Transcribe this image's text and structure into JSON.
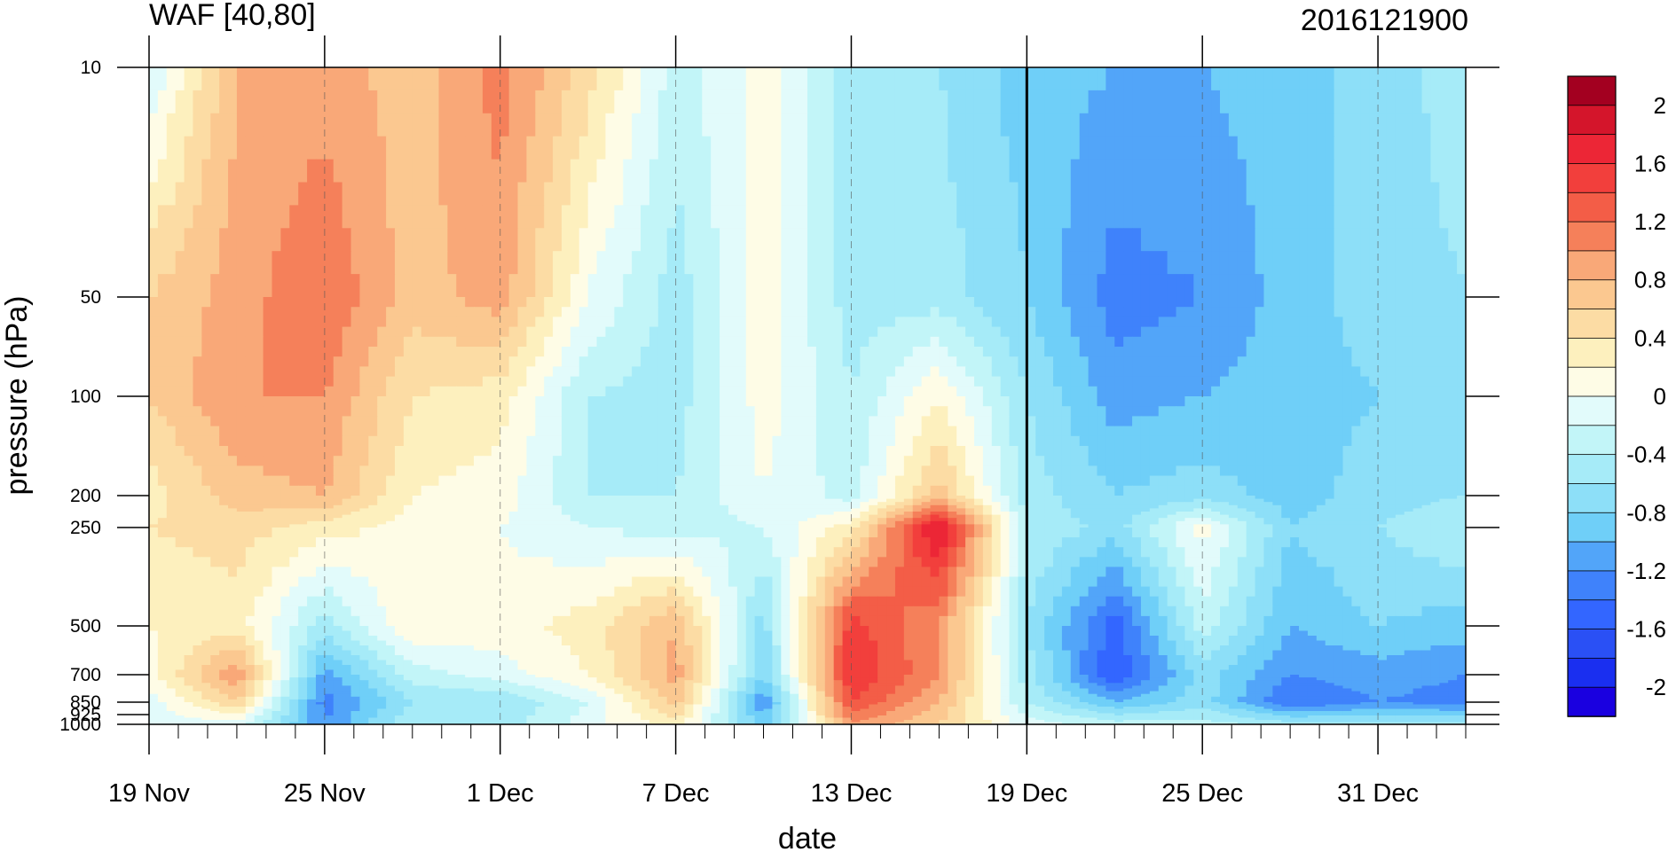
{
  "chart_data": {
    "type": "heatmap",
    "title_left": "WAF [40,80]",
    "title_right": "2016121900",
    "xlabel": "date",
    "ylabel": "pressure (hPa)",
    "x_ticks": [
      "19 Nov",
      "25 Nov",
      "1 Dec",
      "7 Dec",
      "13 Dec",
      "19 Dec",
      "25 Dec",
      "31 Dec"
    ],
    "x_range": [
      "2016-11-19",
      "2017-01-03"
    ],
    "y_ticks": [
      "10",
      "50",
      "100",
      "200",
      "250",
      "500",
      "700",
      "850",
      "925",
      "1000"
    ],
    "y_range": [
      1000,
      10
    ],
    "y_scale": "log, inverted",
    "marked_date": "19 Dec",
    "colorbar": {
      "levels": [
        -2.2,
        -2,
        -1.8,
        -1.6,
        -1.4,
        -1.2,
        -1,
        -0.8,
        -0.6,
        -0.4,
        -0.2,
        0,
        0.2,
        0.4,
        0.6,
        0.8,
        1,
        1.2,
        1.4,
        1.6,
        1.8,
        2,
        2.2
      ],
      "labels": [
        "2",
        "1.6",
        "1.2",
        "0.8",
        "0.4",
        "0",
        "-0.4",
        "-0.8",
        "-1.2",
        "-1.6",
        "-2"
      ],
      "colors": [
        "#1a00e0",
        "#1a2ff0",
        "#2a50f5",
        "#3366ff",
        "#3f82fb",
        "#52a5f9",
        "#6fcff8",
        "#8ddff8",
        "#a6ebf8",
        "#c2f5f8",
        "#e2fbfb",
        "#fefce6",
        "#fdf0be",
        "#fcdca4",
        "#fbc890",
        "#f9a878",
        "#f5805a",
        "#f35d47",
        "#f23f3c",
        "#ec2636",
        "#d4152b",
        "#a30020"
      ]
    },
    "field": {
      "dates": [
        "19 Nov",
        "22 Nov",
        "25 Nov",
        "28 Nov",
        "1 Dec",
        "4 Dec",
        "7 Dec",
        "10 Dec",
        "13 Dec",
        "16 Dec",
        "19 Dec",
        "22 Dec",
        "25 Dec",
        "28 Dec",
        "31 Dec",
        "3 Jan"
      ],
      "pressures": [
        10,
        50,
        100,
        200,
        250,
        500,
        700,
        850,
        1000
      ],
      "values": [
        [
          -0.2,
          0.8,
          0.9,
          0.7,
          1.1,
          0.5,
          -0.3,
          0.1,
          -0.5,
          -0.6,
          -0.9,
          -1.0,
          -1.0,
          -0.9,
          -0.7,
          -0.5
        ],
        [
          0.6,
          0.9,
          1.2,
          0.7,
          0.9,
          0.0,
          -0.5,
          0.1,
          -0.5,
          -0.5,
          -0.8,
          -1.3,
          -1.2,
          -0.9,
          -0.7,
          -0.6
        ],
        [
          0.6,
          1.0,
          1.0,
          0.4,
          0.3,
          -0.4,
          -0.5,
          0.1,
          -0.4,
          0.2,
          -0.6,
          -1.1,
          -1.0,
          -0.9,
          -0.8,
          -0.6
        ],
        [
          0.3,
          0.7,
          0.8,
          0.2,
          0.1,
          -0.4,
          -0.4,
          0.0,
          -0.3,
          0.7,
          -0.5,
          -0.8,
          -0.7,
          -0.9,
          -0.7,
          -0.6
        ],
        [
          0.4,
          0.5,
          0.3,
          0.1,
          0.0,
          -0.2,
          -0.3,
          -0.2,
          0.3,
          1.9,
          -0.4,
          -0.7,
          0.1,
          -0.8,
          -0.6,
          -0.4
        ],
        [
          0.2,
          0.3,
          -0.5,
          0.2,
          0.1,
          0.3,
          0.8,
          -0.7,
          1.5,
          1.0,
          -0.6,
          -1.5,
          -0.3,
          -1.0,
          -0.8,
          -0.9
        ],
        [
          0.1,
          1.0,
          -1.1,
          -0.3,
          -0.1,
          0.2,
          0.9,
          -0.8,
          1.6,
          1.0,
          -0.5,
          -1.6,
          -0.7,
          -1.2,
          -1.1,
          -1.2
        ],
        [
          -0.1,
          0.6,
          -1.3,
          -0.6,
          -0.6,
          -0.2,
          0.7,
          -1.2,
          1.4,
          0.8,
          -0.4,
          -1.0,
          -0.7,
          -1.4,
          -1.2,
          -1.3
        ],
        [
          -0.1,
          -0.1,
          -1.2,
          -0.4,
          -0.5,
          -0.1,
          0.3,
          -0.9,
          1.0,
          0.6,
          -0.1,
          -0.3,
          -0.3,
          -0.5,
          -0.5,
          -0.5
        ]
      ]
    }
  }
}
